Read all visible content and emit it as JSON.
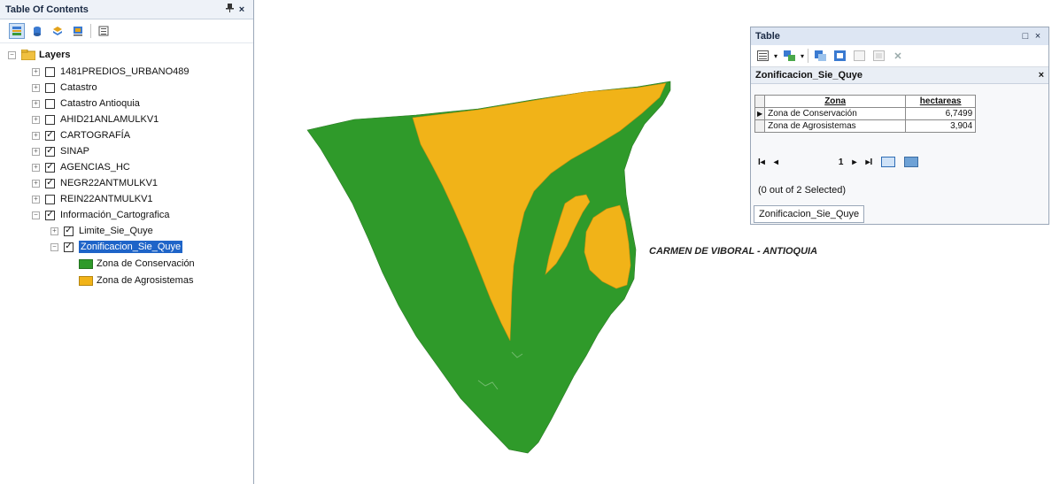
{
  "toc": {
    "title": "Table Of Contents",
    "pin_icon": "📌",
    "close_label": "×",
    "layers_root": "Layers",
    "layers": [
      {
        "name": "1481PREDIOS_URBANO489",
        "checked": false
      },
      {
        "name": "Catastro",
        "checked": false
      },
      {
        "name": "Catastro Antioquia",
        "checked": false
      },
      {
        "name": "AHID21ANLAMULKV1",
        "checked": false
      },
      {
        "name": "CARTOGRAFÍA",
        "checked": true
      },
      {
        "name": "SINAP",
        "checked": true
      },
      {
        "name": "AGENCIAS_HC",
        "checked": true
      },
      {
        "name": "NEGR22ANTMULKV1",
        "checked": true
      },
      {
        "name": "REIN22ANTMULKV1",
        "checked": false
      },
      {
        "name": "Información_Cartografica",
        "checked": true
      }
    ],
    "sublayers": [
      {
        "name": "Limite_Sie_Quye",
        "checked": true
      },
      {
        "name": "Zonificacion_Sie_Quye",
        "checked": true
      }
    ],
    "legend": [
      {
        "label": "Zona de Conservación",
        "color": "#2f9a2a"
      },
      {
        "label": "Zona de Agrosistemas",
        "color": "#f1b318"
      }
    ]
  },
  "map": {
    "label": "CARMEN DE VIBORAL - ANTIOQUIA",
    "colors": {
      "conservation": "#2f9a2a",
      "agro": "#f1b318"
    }
  },
  "table": {
    "title": "Table",
    "layer_tab": "Zonificacion_Sie_Quye",
    "columns": [
      "Zona",
      "hectareas"
    ],
    "rows": [
      {
        "zona": "Zona de Conservación",
        "hectareas": "6,7499"
      },
      {
        "zona": "Zona de Agrosistemas",
        "hectareas": "3,904"
      }
    ],
    "current_record": "1",
    "selection_status": "(0 out of 2 Selected)",
    "bottom_tab": "Zonificacion_Sie_Quye"
  }
}
